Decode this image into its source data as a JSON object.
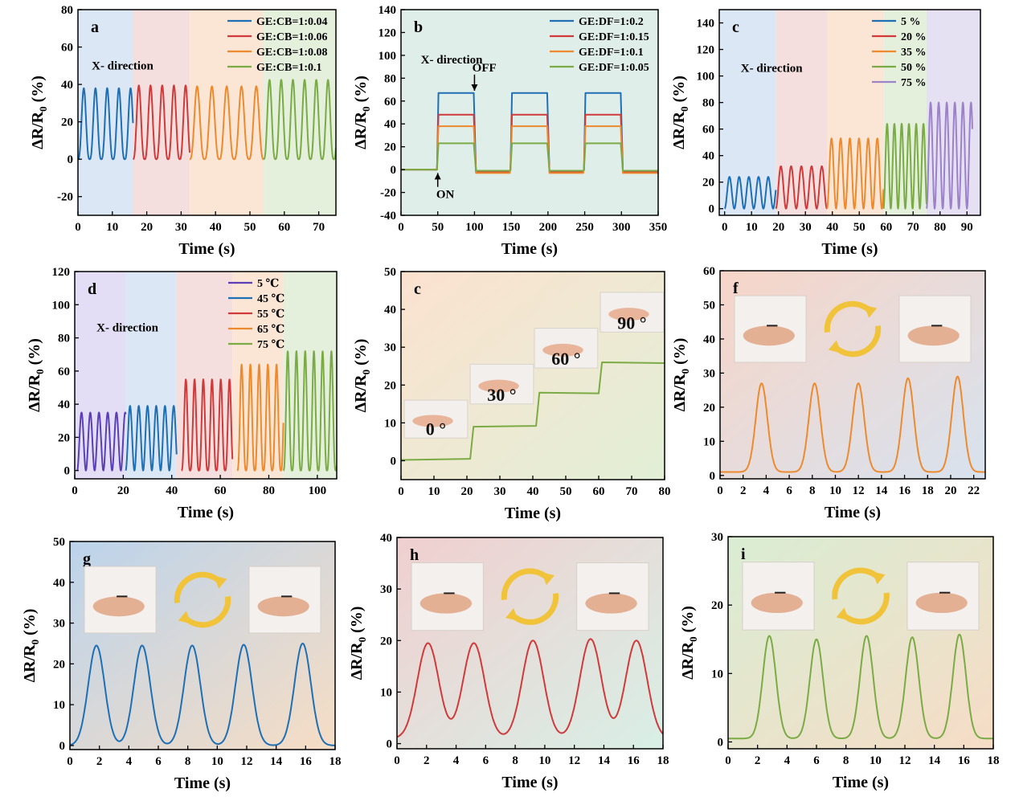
{
  "figure": {
    "axis_font": "Time (s)"
  },
  "chart_data": [
    {
      "id": "a",
      "panel_label": "a",
      "type": "line",
      "xlabel": "Time (s)",
      "ylabel": "ΔR/R",
      "xlim": [
        0,
        75
      ],
      "ylim": [
        -30,
        80
      ],
      "xticks": [
        0,
        10,
        20,
        30,
        40,
        50,
        60,
        70
      ],
      "yticks": [
        -20,
        0,
        20,
        40,
        60,
        80
      ],
      "annotations": [
        {
          "text": "X- direction",
          "x": 4,
          "y": 48
        }
      ],
      "background_bands": [
        {
          "x0": 0,
          "x1": 16,
          "color": "#dbe7f5"
        },
        {
          "x0": 16,
          "x1": 32.5,
          "color": "#f5dede"
        },
        {
          "x0": 32.5,
          "x1": 54,
          "color": "#fbe6d6"
        },
        {
          "x0": 54,
          "x1": 75,
          "color": "#e4efdc"
        }
      ],
      "legend": "top-right",
      "series": [
        {
          "name": "GE:CB=1:0.04",
          "color": "#1f6fb4",
          "wave": {
            "x0": 0,
            "x1": 16,
            "period": 3.4,
            "low": 0,
            "high": 38,
            "shape": "peak"
          }
        },
        {
          "name": "GE:CB=1:0.06",
          "color": "#d03a3a",
          "wave": {
            "x0": 16,
            "x1": 32.5,
            "period": 3.4,
            "low": 0,
            "high": 39.5,
            "shape": "peak"
          }
        },
        {
          "name": "GE:CB=1:0.08",
          "color": "#ee8a2e",
          "wave": {
            "x0": 32.5,
            "x1": 54,
            "period": 4.3,
            "low": 0,
            "high": 39,
            "shape": "peak"
          }
        },
        {
          "name": "GE:CB=1:0.1",
          "color": "#7aab45",
          "wave": {
            "x0": 54,
            "x1": 75,
            "period": 3.4,
            "low": 0,
            "high": 42.5,
            "shape": "peak"
          }
        }
      ]
    },
    {
      "id": "b",
      "panel_label": "b",
      "type": "line",
      "xlabel": "Time (s)",
      "ylabel": "ΔR/R",
      "xlim": [
        0,
        350
      ],
      "ylim": [
        -40,
        140
      ],
      "xticks": [
        0,
        50,
        100,
        150,
        200,
        250,
        300,
        350
      ],
      "yticks": [
        -40,
        -20,
        0,
        20,
        40,
        60,
        80,
        100,
        120,
        140
      ],
      "annotations": [
        {
          "text": "X- direction",
          "x": 27,
          "y": 93
        },
        {
          "text": "OFF",
          "x": 97,
          "y": 86,
          "arrow_to": [
            100,
            69
          ]
        },
        {
          "text": "ON",
          "x": 48,
          "y": -25,
          "arrow_to": [
            50,
            -3
          ]
        }
      ],
      "background_bands": [
        {
          "x0": 0,
          "x1": 350,
          "color": "#e0eeea"
        }
      ],
      "legend": "top-right",
      "series": [
        {
          "name": "GE:DF=1:0.2",
          "color": "#1f6fb4",
          "square": {
            "on": [
              50,
              150,
              250
            ],
            "width": 50,
            "high": 67,
            "tail_low": -2
          }
        },
        {
          "name": "GE:DF=1:0.15",
          "color": "#d03a3a",
          "square": {
            "on": [
              50,
              150,
              250
            ],
            "width": 50,
            "high": 48,
            "tail_low": -2
          }
        },
        {
          "name": "GE:DF=1:0.1",
          "color": "#ee8a2e",
          "square": {
            "on": [
              50,
              150,
              250
            ],
            "width": 50,
            "high": 38,
            "tail_low": -3
          }
        },
        {
          "name": "GE:DF=1:0.05",
          "color": "#7aab45",
          "square": {
            "on": [
              50,
              150,
              250
            ],
            "width": 50,
            "high": 23,
            "tail_low": -1
          }
        }
      ]
    },
    {
      "id": "c1",
      "panel_label": "c",
      "type": "line",
      "xlabel": "Time (s)",
      "ylabel": "ΔR/R",
      "xlim": [
        -2,
        95
      ],
      "ylim": [
        -5,
        150
      ],
      "xticks": [
        0,
        10,
        20,
        30,
        40,
        50,
        60,
        70,
        80,
        90
      ],
      "yticks": [
        0,
        20,
        40,
        60,
        80,
        100,
        120,
        140
      ],
      "annotations": [
        {
          "text": "X- direction",
          "x": 6,
          "y": 103
        }
      ],
      "background_bands": [
        {
          "x0": -2,
          "x1": 19,
          "color": "#dbe7f5"
        },
        {
          "x0": 19,
          "x1": 38,
          "color": "#f5dede"
        },
        {
          "x0": 38,
          "x1": 59,
          "color": "#fbe6d6"
        },
        {
          "x0": 59,
          "x1": 75,
          "color": "#e4efdc"
        },
        {
          "x0": 75,
          "x1": 95,
          "color": "#e6e0f3"
        }
      ],
      "legend": "top-right",
      "series": [
        {
          "name": "5 %",
          "color": "#1f6fb4",
          "wave": {
            "x0": 0,
            "x1": 19,
            "period": 3.6,
            "low": 0,
            "high": 24,
            "shape": "sine"
          }
        },
        {
          "name": "20 %",
          "color": "#d03a3a",
          "wave": {
            "x0": 19,
            "x1": 38,
            "period": 3.8,
            "low": 0,
            "high": 32,
            "shape": "sine"
          }
        },
        {
          "name": "35 %",
          "color": "#ee8a2e",
          "wave": {
            "x0": 38,
            "x1": 59,
            "period": 3.4,
            "low": 0,
            "high": 53,
            "shape": "sine"
          }
        },
        {
          "name": "50 %",
          "color": "#7aab45",
          "wave": {
            "x0": 59,
            "x1": 75,
            "period": 2.7,
            "low": 0,
            "high": 64,
            "shape": "sine"
          }
        },
        {
          "name": "75 %",
          "color": "#9b82c9",
          "wave": {
            "x0": 75,
            "x1": 92,
            "period": 3.0,
            "low": 0,
            "high": 80,
            "shape": "sine"
          }
        }
      ]
    },
    {
      "id": "d",
      "panel_label": "d",
      "type": "line",
      "xlabel": "Time (s)",
      "ylabel": "ΔR/R",
      "xlim": [
        0,
        108
      ],
      "ylim": [
        -5,
        120
      ],
      "xticks": [
        0,
        20,
        40,
        60,
        80,
        100
      ],
      "yticks": [
        0,
        20,
        40,
        60,
        80,
        100,
        120
      ],
      "annotations": [
        {
          "text": "X- direction",
          "x": 9,
          "y": 84
        }
      ],
      "background_bands": [
        {
          "x0": 0,
          "x1": 21,
          "color": "#e3def5"
        },
        {
          "x0": 21,
          "x1": 42,
          "color": "#dbe7f5"
        },
        {
          "x0": 42,
          "x1": 65,
          "color": "#f5dede"
        },
        {
          "x0": 65,
          "x1": 86,
          "color": "#fbe6d6"
        },
        {
          "x0": 86,
          "x1": 108,
          "color": "#e4efdc"
        }
      ],
      "legend": "top-right",
      "series": [
        {
          "name": "5 ℃",
          "color": "#5b3fb6",
          "wave": {
            "x0": 1,
            "x1": 21,
            "period": 3.6,
            "low": 0,
            "high": 35,
            "shape": "sine"
          }
        },
        {
          "name": "45 ℃",
          "color": "#1f6fb4",
          "wave": {
            "x0": 21,
            "x1": 42,
            "period": 3.6,
            "low": 0,
            "high": 39,
            "shape": "sine"
          }
        },
        {
          "name": "55 ℃",
          "color": "#d03a3a",
          "wave": {
            "x0": 44,
            "x1": 65,
            "period": 3.6,
            "low": 0,
            "high": 55,
            "shape": "peak"
          }
        },
        {
          "name": "65 ℃",
          "color": "#ee8a2e",
          "wave": {
            "x0": 67,
            "x1": 86,
            "period": 3.6,
            "low": 0,
            "high": 64,
            "shape": "peak"
          }
        },
        {
          "name": "75 ℃",
          "color": "#7aab45",
          "wave": {
            "x0": 86,
            "x1": 108,
            "period": 3.6,
            "low": 0,
            "high": 72,
            "shape": "peak"
          }
        }
      ]
    },
    {
      "id": "c2",
      "panel_label": "c",
      "type": "line",
      "xlabel": "Time (s)",
      "ylabel": "ΔR/R",
      "xlim": [
        0,
        80
      ],
      "ylim": [
        -5,
        50
      ],
      "xticks": [
        0,
        10,
        20,
        30,
        40,
        50,
        60,
        70,
        80
      ],
      "yticks": [
        0,
        10,
        20,
        30,
        40,
        50
      ],
      "bg_gradient": [
        "#fbe2cf",
        "#e2efd6"
      ],
      "photo_labels": [
        {
          "text": "0 °",
          "x": 1,
          "y_top": 16,
          "y_bot": 6
        },
        {
          "text": "30 °",
          "x": 21,
          "y_top": 25.5,
          "y_bot": 15
        },
        {
          "text": "60 °",
          "x": 40.5,
          "y_top": 35,
          "y_bot": 24.5
        },
        {
          "text": "90 °",
          "x": 60.5,
          "y_top": 44.5,
          "y_bot": 34
        }
      ],
      "series": [
        {
          "name": "",
          "color": "#7aab45",
          "steps": [
            [
              0,
              0.2
            ],
            [
              21,
              0.5
            ],
            [
              22,
              9
            ],
            [
              41,
              9.2
            ],
            [
              42,
              18
            ],
            [
              60,
              17.8
            ],
            [
              61,
              26
            ],
            [
              80,
              25.8
            ]
          ]
        }
      ]
    },
    {
      "id": "f",
      "panel_label": "f",
      "type": "line",
      "xlabel": "Time (s)",
      "ylabel": "ΔR/R",
      "xlim": [
        0,
        23
      ],
      "ylim": [
        -1,
        60
      ],
      "xticks": [
        0,
        2,
        4,
        6,
        8,
        10,
        12,
        14,
        16,
        18,
        20,
        22
      ],
      "yticks": [
        0,
        10,
        20,
        30,
        40,
        50,
        60
      ],
      "bg_gradient": [
        "#f7d5c8",
        "#d7e2ee"
      ],
      "series": [
        {
          "name": "",
          "color": "#ee8a2e",
          "peaks": {
            "centers": [
              3.6,
              8.2,
              12.0,
              16.3,
              20.6
            ],
            "heights": [
              27,
              27,
              27,
              28.5,
              29
            ],
            "width": 0.9,
            "base": 1
          }
        }
      ]
    },
    {
      "id": "g",
      "panel_label": "g",
      "type": "line",
      "xlabel": "Time (s)",
      "ylabel": "ΔR/R",
      "xlim": [
        0,
        18
      ],
      "ylim": [
        -1,
        50
      ],
      "xticks": [
        0,
        2,
        4,
        6,
        8,
        10,
        12,
        14,
        16,
        18
      ],
      "yticks": [
        0,
        10,
        20,
        30,
        40,
        50
      ],
      "bg_gradient": [
        "#bcd3eb",
        "#f6ddc4"
      ],
      "series": [
        {
          "name": "",
          "color": "#1f6fb4",
          "peaks": {
            "centers": [
              1.8,
              4.9,
              8.3,
              11.8,
              15.8
            ],
            "heights": [
              24.5,
              24.5,
              24.5,
              24.7,
              25
            ],
            "width": 1.0,
            "base": 0
          }
        }
      ]
    },
    {
      "id": "h",
      "panel_label": "h",
      "type": "line",
      "xlabel": "Time (s)",
      "ylabel": "ΔR/R",
      "xlim": [
        0,
        18
      ],
      "ylim": [
        -1,
        40
      ],
      "xticks": [
        0,
        2,
        4,
        6,
        8,
        10,
        12,
        14,
        16,
        18
      ],
      "yticks": [
        0,
        10,
        20,
        30,
        40
      ],
      "bg_gradient": [
        "#f0cfcf",
        "#d8efe6"
      ],
      "series": [
        {
          "name": "",
          "color": "#d03a3a",
          "peaks": {
            "centers": [
              2.1,
              5.2,
              9.2,
              13.1,
              16.2
            ],
            "heights": [
              19.5,
              19.5,
              20,
              20.3,
              20
            ],
            "width": 1.3,
            "base": 1
          }
        }
      ]
    },
    {
      "id": "i",
      "panel_label": "i",
      "type": "line",
      "xlabel": "Time (s)",
      "ylabel": "ΔR/R",
      "xlim": [
        0,
        18
      ],
      "ylim": [
        -1,
        30
      ],
      "xticks": [
        0,
        2,
        4,
        6,
        8,
        10,
        12,
        14,
        16,
        18
      ],
      "yticks": [
        0,
        10,
        20,
        30
      ],
      "bg_gradient": [
        "#d9edd3",
        "#f6dcc6"
      ],
      "series": [
        {
          "name": "",
          "color": "#7aab45",
          "peaks": {
            "centers": [
              2.8,
              6.0,
              9.4,
              12.5,
              15.7
            ],
            "heights": [
              15.5,
              15,
              15.5,
              15.3,
              15.7
            ],
            "width": 0.8,
            "base": 0.5
          }
        }
      ]
    }
  ]
}
